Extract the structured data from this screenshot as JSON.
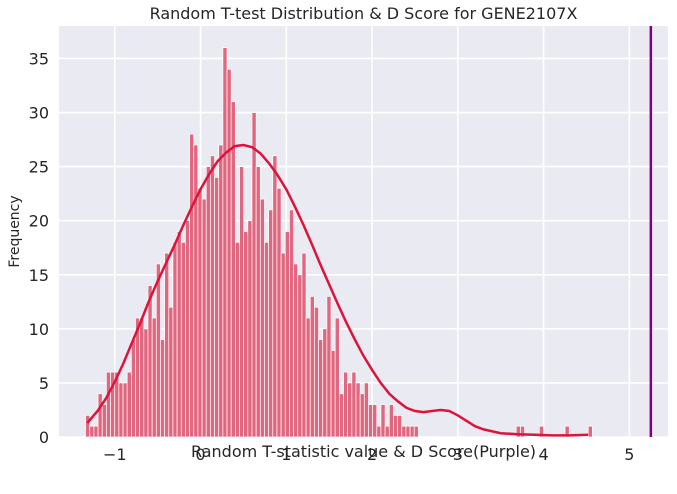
{
  "chart_data": {
    "type": "histogram",
    "title": "Random T-test Distribution & D Score for GENE2107X",
    "xlabel": "Random T-statistic value & D Score(Purple)",
    "ylabel": "Frequency",
    "xlim": [
      -1.65,
      5.45
    ],
    "ylim": [
      0,
      38
    ],
    "x_ticks": [
      -1,
      0,
      1,
      2,
      3,
      4,
      5
    ],
    "x_tick_labels": [
      "−1",
      "0",
      "1",
      "2",
      "3",
      "4",
      "5"
    ],
    "y_ticks": [
      0,
      5,
      10,
      15,
      20,
      25,
      30,
      35
    ],
    "y_tick_labels": [
      "0",
      "5",
      "10",
      "15",
      "20",
      "25",
      "30",
      "35"
    ],
    "grid": true,
    "bar_color": "#e0677f",
    "kde_color": "#dc143c",
    "d_score_color": "#800080",
    "bin_edges_start": -1.34,
    "bin_width": 0.0485,
    "counts": [
      2,
      1,
      1,
      4,
      3,
      6,
      6,
      6,
      5,
      5,
      6,
      9,
      11,
      11,
      10,
      14,
      11,
      16,
      9,
      17,
      12,
      18,
      19,
      18,
      20,
      28,
      27,
      23,
      22,
      25,
      26,
      24,
      27,
      36,
      34,
      31,
      18,
      25,
      19,
      20,
      30,
      25,
      22,
      18,
      21,
      26,
      23,
      17,
      19,
      21,
      16,
      15,
      17,
      11,
      13,
      12,
      9,
      10,
      13,
      8,
      11,
      4,
      6,
      5,
      6,
      5,
      4,
      5,
      3,
      3,
      1,
      3,
      1,
      3,
      2,
      2,
      1,
      1,
      1,
      1,
      0,
      0,
      0,
      0,
      0,
      0,
      0,
      0,
      0,
      0,
      0,
      0,
      0,
      0,
      0,
      0,
      0,
      0,
      0,
      0,
      0,
      0,
      0,
      0,
      0,
      0,
      0,
      0,
      0,
      0,
      0,
      0,
      0,
      0,
      0,
      0,
      0,
      0,
      0,
      0,
      0,
      0,
      0,
      0,
      0,
      0
    ],
    "extra_bars": [
      {
        "x": 3.68,
        "count": 1
      },
      {
        "x": 3.73,
        "count": 1
      },
      {
        "x": 3.95,
        "count": 1
      },
      {
        "x": 4.25,
        "count": 1
      },
      {
        "x": 4.52,
        "count": 1
      }
    ],
    "kde": {
      "x": [
        -1.32,
        -1.2,
        -1.1,
        -1.0,
        -0.9,
        -0.8,
        -0.7,
        -0.6,
        -0.5,
        -0.4,
        -0.3,
        -0.2,
        -0.1,
        0.0,
        0.1,
        0.2,
        0.3,
        0.4,
        0.5,
        0.6,
        0.7,
        0.8,
        0.9,
        1.0,
        1.1,
        1.2,
        1.3,
        1.4,
        1.5,
        1.6,
        1.7,
        1.8,
        1.9,
        2.0,
        2.1,
        2.2,
        2.3,
        2.4,
        2.5,
        2.6,
        2.7,
        2.8,
        2.9,
        3.0,
        3.1,
        3.2,
        3.3,
        3.5,
        3.7,
        3.9,
        4.1,
        4.3,
        4.52
      ],
      "y": [
        1.3,
        2.4,
        3.6,
        5.1,
        6.8,
        8.7,
        10.6,
        12.6,
        14.4,
        16.1,
        17.8,
        19.6,
        21.3,
        22.9,
        24.3,
        25.5,
        26.3,
        26.9,
        27.0,
        26.8,
        26.2,
        25.3,
        24.2,
        22.9,
        21.3,
        19.6,
        17.8,
        15.9,
        14.1,
        12.3,
        10.6,
        9.0,
        7.5,
        6.2,
        5.0,
        4.0,
        3.3,
        2.7,
        2.4,
        2.3,
        2.4,
        2.5,
        2.4,
        2.0,
        1.5,
        1.0,
        0.7,
        0.35,
        0.25,
        0.2,
        0.15,
        0.15,
        0.2
      ]
    },
    "d_score": 5.25
  }
}
